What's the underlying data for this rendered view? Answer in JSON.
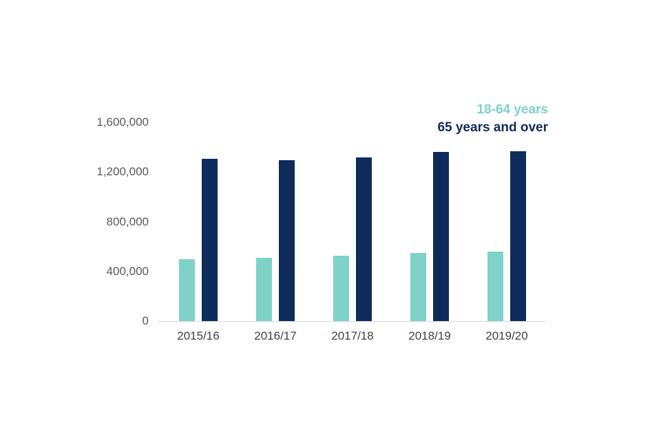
{
  "chart_data": {
    "type": "bar",
    "title": "",
    "xlabel": "",
    "ylabel": "",
    "categories": [
      "2015/16",
      "2016/17",
      "2017/18",
      "2018/19",
      "2019/20"
    ],
    "series": [
      {
        "name": "18-64 years",
        "color": "#7ED2C8",
        "values": [
          500000,
          510000,
          525000,
          550000,
          560000
        ]
      },
      {
        "name": "65 years and over",
        "color": "#0F2B5C",
        "values": [
          1305000,
          1295000,
          1315000,
          1360000,
          1365000
        ]
      }
    ],
    "ylim": [
      0,
      1600000
    ],
    "yticks": [
      0,
      400000,
      800000,
      1200000,
      1600000
    ],
    "ytick_labels": [
      "0",
      "400,000",
      "800,000",
      "1,200,000",
      "1,600,000"
    ],
    "grid": false,
    "legend_position": "top-right"
  }
}
